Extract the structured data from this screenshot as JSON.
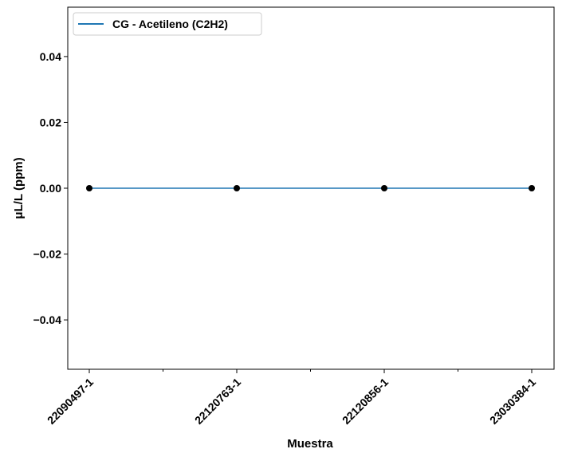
{
  "chart_data": {
    "type": "line",
    "title": "",
    "xlabel": "Muestra",
    "ylabel": "μL/L (ppm)",
    "categories": [
      "22090497-1",
      "22120763-1",
      "22120856-1",
      "23030384-1"
    ],
    "series": [
      {
        "name": "CG - Acetileno (C2H2)",
        "values": [
          0,
          0,
          0,
          0
        ],
        "color": "#1f77b4",
        "marker_color": "#000000"
      }
    ],
    "ylim": [
      -0.055,
      0.055
    ],
    "yticks": [
      0.04,
      0.02,
      0.0,
      -0.02,
      -0.04
    ],
    "ytick_labels": [
      "0.04",
      "0.02",
      "0.00",
      "−0.02",
      "−0.04"
    ],
    "grid": false,
    "legend_position": "top-left"
  }
}
